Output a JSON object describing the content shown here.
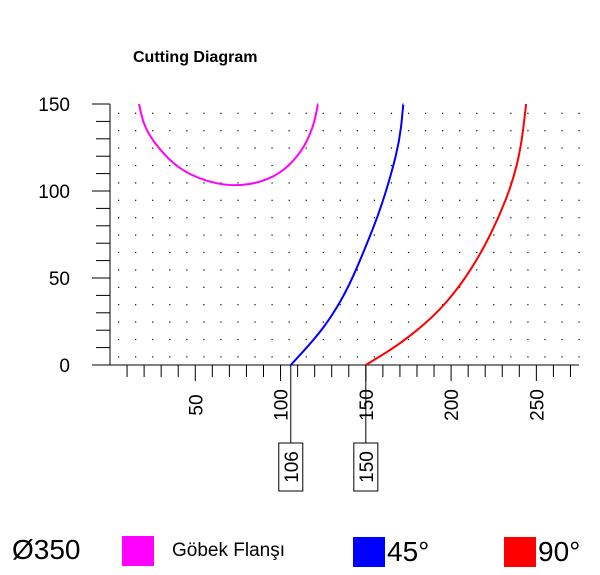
{
  "chart_data": {
    "type": "line",
    "title": "Cutting Diagram",
    "xlim": [
      0,
      275
    ],
    "ylim": [
      0,
      150
    ],
    "x_ticks": [
      50,
      100,
      150,
      200,
      250
    ],
    "y_ticks": [
      0,
      50,
      100,
      150
    ],
    "grid": "dotted",
    "series": [
      {
        "name": "Göbek Flanşı",
        "color": "#ff00ff",
        "points": [
          [
            17,
            150
          ],
          [
            20,
            137
          ],
          [
            28,
            125
          ],
          [
            40,
            113
          ],
          [
            55,
            106
          ],
          [
            70,
            103
          ],
          [
            85,
            104
          ],
          [
            100,
            110
          ],
          [
            112,
            122
          ],
          [
            119,
            136
          ],
          [
            122,
            150
          ]
        ]
      },
      {
        "name": "45°",
        "color": "#0000ff",
        "points": [
          [
            106,
            0
          ],
          [
            120,
            15
          ],
          [
            130,
            28
          ],
          [
            140,
            45
          ],
          [
            150,
            68
          ],
          [
            158,
            88
          ],
          [
            165,
            110
          ],
          [
            170,
            130
          ],
          [
            172,
            150
          ]
        ]
      },
      {
        "name": "90°",
        "color": "#ff0000",
        "points": [
          [
            150,
            0
          ],
          [
            170,
            12
          ],
          [
            190,
            28
          ],
          [
            205,
            45
          ],
          [
            218,
            65
          ],
          [
            228,
            85
          ],
          [
            236,
            105
          ],
          [
            241,
            125
          ],
          [
            244,
            150
          ]
        ]
      }
    ],
    "markers": [
      {
        "x": 106,
        "label": "106"
      },
      {
        "x": 150,
        "label": "150"
      }
    ]
  },
  "legend": {
    "diameter": "Ø350",
    "items": [
      {
        "label": "Göbek Flanşı",
        "color": "#ff00ff"
      },
      {
        "label": "45°",
        "color": "#0000ff"
      },
      {
        "label": "90°",
        "color": "#ff0000"
      }
    ]
  }
}
